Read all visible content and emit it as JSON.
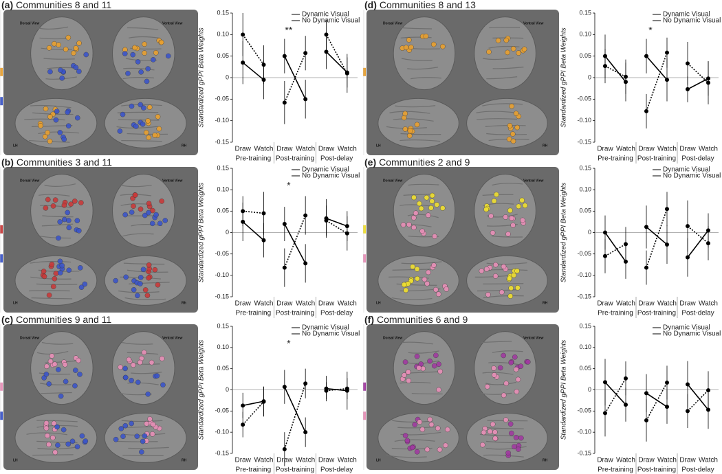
{
  "chart_data": [
    {
      "type": "line",
      "panel": "(a)",
      "title": "Communities 8 and 11",
      "ylabel": "Standardized gPPI Beta Weights",
      "categories": [
        "Draw",
        "Watch",
        "Draw",
        "Watch",
        "Draw",
        "Watch"
      ],
      "groups": [
        "Pre-training",
        "Post-training",
        "Post-delay"
      ],
      "series": [
        {
          "name": "Dynamic Visual",
          "color": "#000000",
          "line_style": "solid",
          "values": [
            0.035,
            -0.005,
            0.05,
            -0.05,
            0.06,
            0.012
          ],
          "errors": [
            0.05,
            0.045,
            0.04,
            0.045,
            0.04,
            0.035
          ]
        },
        {
          "name": "No Dynamic Visual",
          "color": "#000000",
          "line_style": "dotted",
          "values": [
            0.1,
            0.03,
            -0.058,
            0.057,
            0.1,
            0.01
          ],
          "errors": [
            0.05,
            0.045,
            0.05,
            0.04,
            0.035,
            0.045
          ]
        }
      ],
      "ylim": [
        -0.15,
        0.15
      ],
      "yticks": [
        0.15,
        {
          "value": 0.1,
          "label": "0.10"
        },
        0.05,
        0,
        -0.05,
        {
          "value": -0.1,
          "label": "-0.10"
        },
        -0.15
      ],
      "legend": "upper right",
      "annotations": [
        {
          "text": "**",
          "group": "Post-training"
        }
      ],
      "brain": {
        "colors": [
          "#e8a030",
          "#3b55c8"
        ],
        "labels": {
          "dorsal": "Dorsal View",
          "ventral": "Ventral View",
          "left": "LH",
          "right": "RH"
        }
      }
    },
    {
      "type": "line",
      "panel": "(b)",
      "title": "Communities 3 and 11",
      "ylabel": "Standardized gPPI Beta Weights",
      "categories": [
        "Draw",
        "Watch",
        "Draw",
        "Watch",
        "Draw",
        "Watch"
      ],
      "groups": [
        "Pre-training",
        "Post-training",
        "Post-delay"
      ],
      "series": [
        {
          "name": "Dynamic Visual",
          "color": "#000000",
          "line_style": "solid",
          "values": [
            0.025,
            -0.018,
            0.02,
            -0.072,
            0.033,
            0.015
          ],
          "errors": [
            0.045,
            0.04,
            0.04,
            0.045,
            0.045,
            0.035
          ]
        },
        {
          "name": "No Dynamic Visual",
          "color": "#000000",
          "line_style": "dotted",
          "values": [
            0.05,
            0.045,
            -0.082,
            0.04,
            0.028,
            -0.002
          ],
          "errors": [
            0.035,
            0.05,
            0.045,
            0.045,
            0.035,
            0.04
          ]
        }
      ],
      "ylim": [
        -0.15,
        0.15
      ],
      "yticks": [
        0.15,
        {
          "value": 0.1,
          "label": "0.10"
        },
        0.05,
        0,
        -0.05,
        {
          "value": -0.1,
          "label": "-0.10"
        },
        -0.15
      ],
      "legend": "upper right",
      "annotations": [
        {
          "text": "*",
          "group": "Post-training"
        }
      ],
      "brain": {
        "colors": [
          "#c83a3a",
          "#3b55c8"
        ],
        "labels": {
          "dorsal": "Dorsal View",
          "ventral": "Ventral View",
          "left": "LH",
          "right": "Rh"
        }
      }
    },
    {
      "type": "line",
      "panel": "(c)",
      "title": "Communities 9 and 11",
      "ylabel": "Standardized gPPI Beta Weights",
      "categories": [
        "Draw",
        "Watch",
        "Draw",
        "Watch",
        "Draw",
        "Watch"
      ],
      "groups": [
        "Pre-training",
        "Post-training",
        "Post-delay"
      ],
      "series": [
        {
          "name": "Dynamic Visual",
          "color": "#000000",
          "line_style": "solid",
          "values": [
            -0.037,
            -0.027,
            0.007,
            -0.1,
            0.003,
            -0.002
          ],
          "errors": [
            0.03,
            0.035,
            0.04,
            0.035,
            0.03,
            0.045
          ]
        },
        {
          "name": "No Dynamic Visual",
          "color": "#000000",
          "line_style": "dotted",
          "values": [
            -0.082,
            -0.028,
            -0.14,
            0.015,
            -0.002,
            0.003
          ],
          "errors": [
            0.03,
            0.035,
            0.04,
            0.035,
            0.02,
            0.025
          ]
        }
      ],
      "ylim": [
        -0.15,
        0.15
      ],
      "yticks": [
        0.15,
        {
          "value": 0.1,
          "label": "0.10"
        },
        0.05,
        0,
        -0.05,
        {
          "value": -0.1,
          "label": "-0.10"
        },
        -0.15
      ],
      "legend": "upper right",
      "annotations": [
        {
          "text": "*",
          "group": "Post-training"
        }
      ],
      "brain": {
        "colors": [
          "#e890b8",
          "#3b55c8"
        ],
        "labels": {
          "dorsal": "Dorsal View",
          "ventral": "Ventral View",
          "left": "LH",
          "right": "RH"
        }
      }
    },
    {
      "type": "line",
      "panel": "(d)",
      "title": "Communities 8 and 13",
      "ylabel": "Standardized gPPI Beta Weights",
      "categories": [
        "Draw",
        "Watch",
        "Draw",
        "Watch",
        "Draw",
        "Watch"
      ],
      "groups": [
        "Pre-training",
        "Post-training",
        "Post-delay"
      ],
      "series": [
        {
          "name": "Dynamic Visual",
          "color": "#000000",
          "line_style": "solid",
          "values": [
            0.05,
            -0.01,
            0.05,
            -0.005,
            -0.027,
            -0.002
          ],
          "errors": [
            0.05,
            0.045,
            0.04,
            0.05,
            0.03,
            0.04
          ]
        },
        {
          "name": "No Dynamic Visual",
          "color": "#000000",
          "line_style": "dotted",
          "values": [
            0.027,
            0.002,
            -0.078,
            0.058,
            0.033,
            -0.012
          ],
          "errors": [
            0.04,
            0.04,
            0.04,
            0.035,
            0.05,
            0.05
          ]
        }
      ],
      "ylim": [
        -0.15,
        0.15
      ],
      "yticks": [
        0.15,
        {
          "value": 0.1,
          "label": "0.10"
        },
        0.05,
        0,
        -0.05,
        {
          "value": -0.1,
          "label": "-0.10"
        },
        -0.15
      ],
      "legend": "upper right",
      "annotations": [
        {
          "text": "*",
          "group": "Post-training"
        }
      ],
      "brain": {
        "colors": [
          "#e8a030"
        ],
        "labels": {
          "dorsal": "Dorsal View",
          "ventral": "Ventral View",
          "left": "LH",
          "right": "RH"
        }
      }
    },
    {
      "type": "line",
      "panel": "(e)",
      "title": "Communities 2 and 9",
      "ylabel": "Standardized gPPI Beta Weights",
      "categories": [
        "Draw",
        "Watch",
        "Draw",
        "Watch",
        "Draw",
        "Watch"
      ],
      "groups": [
        "Pre-training",
        "Post-training",
        "Post-delay"
      ],
      "series": [
        {
          "name": "Dynamic Visual",
          "color": "#000000",
          "line_style": "solid",
          "values": [
            0,
            -0.068,
            0.013,
            -0.028,
            -0.058,
            0.005
          ],
          "errors": [
            0.04,
            0.04,
            0.05,
            0.045,
            0.045,
            0.04
          ]
        },
        {
          "name": "No Dynamic Visual",
          "color": "#000000",
          "line_style": "dotted",
          "values": [
            -0.055,
            -0.027,
            -0.082,
            0.055,
            0.015,
            -0.025
          ],
          "errors": [
            0.04,
            0.04,
            0.04,
            0.04,
            0.06,
            0.04
          ]
        }
      ],
      "ylim": [
        -0.15,
        0.15
      ],
      "yticks": [
        0.15,
        {
          "value": 0.1,
          "label": "0.10"
        },
        0.05,
        0,
        -0.05,
        {
          "value": -0.1,
          "label": "-0.10"
        },
        -0.15
      ],
      "legend": "upper right",
      "brain": {
        "colors": [
          "#f0e030",
          "#e890b8"
        ],
        "labels": {
          "dorsal": "Dorsal View",
          "ventral": "Ventral View",
          "left": "LH",
          "right": "RH"
        }
      }
    },
    {
      "type": "line",
      "panel": "(f)",
      "title": "Communities 6 and 9",
      "ylabel": "Standardized gPPI Beta Weights",
      "categories": [
        "Draw",
        "Watch",
        "Draw",
        "Watch",
        "Draw",
        "Watch"
      ],
      "groups": [
        "Pre-training",
        "Post-training",
        "Post-delay"
      ],
      "series": [
        {
          "name": "Dynamic Visual",
          "color": "#000000",
          "line_style": "solid",
          "values": [
            0.018,
            -0.035,
            -0.008,
            -0.04,
            0.013,
            -0.047
          ],
          "errors": [
            0.055,
            0.04,
            0.045,
            0.04,
            0.055,
            0.045
          ]
        },
        {
          "name": "No Dynamic Visual",
          "color": "#000000",
          "line_style": "dotted",
          "values": [
            -0.055,
            0.027,
            -0.072,
            0.017,
            -0.05,
            -0.001
          ],
          "errors": [
            0.055,
            0.04,
            0.05,
            0.04,
            0.04,
            0.045
          ]
        }
      ],
      "ylim": [
        -0.15,
        0.15
      ],
      "yticks": [
        0.15,
        {
          "value": 0.1,
          "label": "0.10"
        },
        0.05,
        0,
        -0.05,
        {
          "value": -0.1,
          "label": "-0.10"
        },
        -0.15
      ],
      "legend": "upper right",
      "brain": {
        "colors": [
          "#a03aa0",
          "#e890b8"
        ],
        "labels": {
          "dorsal": "Dorsal View",
          "ventral": "Ventral View",
          "left": "LH",
          "right": "RH"
        }
      }
    }
  ]
}
